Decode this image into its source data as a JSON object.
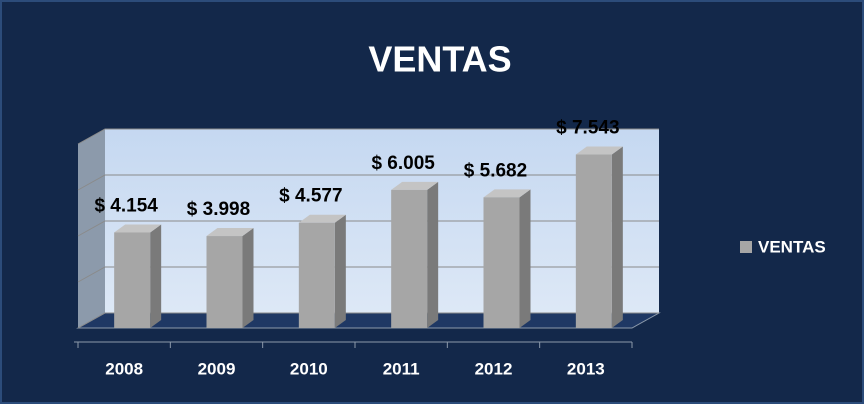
{
  "chart_data": {
    "type": "bar",
    "title": "VENTAS",
    "categories": [
      "2008",
      "2009",
      "2010",
      "2011",
      "2012",
      "2013"
    ],
    "series": [
      {
        "name": "VENTAS",
        "color": "#a6a6a6",
        "values": [
          4154,
          3998,
          4577,
          6005,
          5682,
          7543
        ],
        "value_labels": [
          "$ 4.154",
          "$ 3.998",
          "$ 4.577",
          "$ 6.005",
          "$ 5.682",
          "$ 7.543"
        ]
      }
    ],
    "ylim": [
      0,
      8000
    ],
    "yticks": [
      0,
      2000,
      4000,
      6000,
      8000
    ],
    "grid": true,
    "legend": "right"
  }
}
